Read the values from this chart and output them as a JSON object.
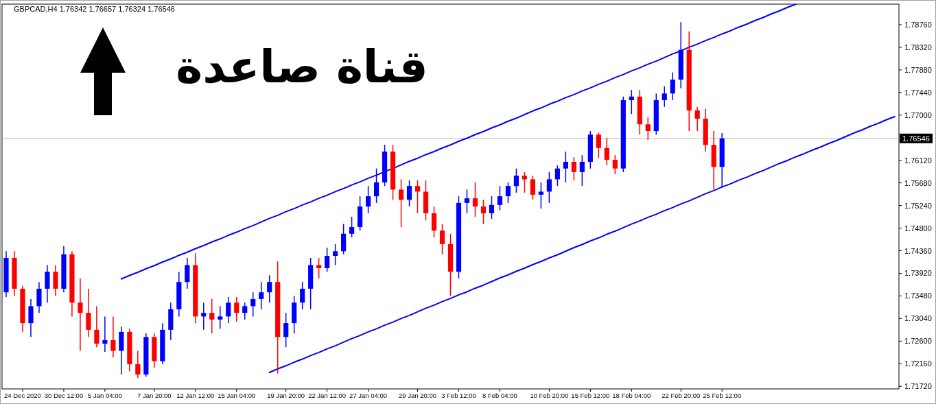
{
  "chart_data": {
    "type": "candlestick",
    "title": "GBPCAD,H4  1.76342 1.76657 1.76324 1.76546",
    "annotations": [
      "قناة صاعدة"
    ],
    "categories": [
      null,
      null,
      "24 Dec 2020",
      null,
      null,
      null,
      null,
      "30 Dec 12:00",
      null,
      null,
      null,
      null,
      "5 Jan 04:00",
      null,
      null,
      null,
      null,
      null,
      "7 Jan 20:00",
      null,
      null,
      null,
      null,
      "12 Jan 12:00",
      null,
      null,
      null,
      null,
      "15 Jan 04:00",
      null,
      null,
      null,
      null,
      null,
      "19 Jan 20:00",
      null,
      null,
      null,
      null,
      "22 Jan 12:00",
      null,
      null,
      null,
      null,
      "27 Jan 04:00",
      null,
      null,
      null,
      null,
      null,
      "29 Jan 20:00",
      null,
      null,
      null,
      null,
      "3 Feb 12:00",
      null,
      null,
      null,
      null,
      "8 Feb 04:00",
      null,
      null,
      null,
      null,
      null,
      "10 Feb 20:00",
      null,
      null,
      null,
      null,
      "15 Feb 12:00",
      null,
      null,
      null,
      null,
      "18 Feb 04:00",
      null,
      null,
      null,
      null,
      null,
      "22 Feb 20:00",
      null,
      null,
      null,
      null,
      "25 Feb 12:00",
      null,
      null,
      null,
      null,
      null,
      null,
      null,
      null,
      null,
      null,
      null,
      null,
      null,
      null,
      null,
      null,
      null,
      null,
      null,
      null,
      null
    ],
    "ohlc": [
      [
        1.7355,
        1.7435,
        1.7346,
        1.7422
      ],
      [
        1.7422,
        1.7435,
        1.7348,
        1.7362
      ],
      [
        1.7362,
        1.7368,
        1.7278,
        1.7295
      ],
      [
        1.7295,
        1.7342,
        1.7268,
        1.7328
      ],
      [
        1.7328,
        1.7375,
        1.7315,
        1.7362
      ],
      [
        1.7362,
        1.7408,
        1.7335,
        1.7395
      ],
      [
        1.7395,
        1.7408,
        1.7348,
        1.7362
      ],
      [
        1.7362,
        1.7445,
        1.7355,
        1.7429
      ],
      [
        1.7429,
        1.7435,
        1.7308,
        1.7335
      ],
      [
        1.7335,
        1.7382,
        1.7241,
        1.7315
      ],
      [
        1.7315,
        1.7362,
        1.7268,
        1.7282
      ],
      [
        1.7282,
        1.7328,
        1.7248,
        1.7255
      ],
      [
        1.7255,
        1.7308,
        1.7239,
        1.7262
      ],
      [
        1.7262,
        1.7308,
        1.7228,
        1.7241
      ],
      [
        1.7241,
        1.7288,
        1.7195,
        1.7278
      ],
      [
        1.7278,
        1.7284,
        1.7201,
        1.7215
      ],
      [
        1.7215,
        1.7241,
        1.7188,
        1.7195
      ],
      [
        1.7195,
        1.7275,
        1.7191,
        1.7268
      ],
      [
        1.7268,
        1.7275,
        1.7208,
        1.7221
      ],
      [
        1.7221,
        1.7295,
        1.7215,
        1.7282
      ],
      [
        1.7282,
        1.7335,
        1.7262,
        1.7322
      ],
      [
        1.7322,
        1.7395,
        1.7308,
        1.7375
      ],
      [
        1.7375,
        1.7422,
        1.7362,
        1.7408
      ],
      [
        1.7408,
        1.7431,
        1.7295,
        1.7308
      ],
      [
        1.7308,
        1.7335,
        1.7282,
        1.7315
      ],
      [
        1.7315,
        1.7342,
        1.7275,
        1.7302
      ],
      [
        1.7302,
        1.7328,
        1.7284,
        1.7308
      ],
      [
        1.7308,
        1.7346,
        1.7295,
        1.7335
      ],
      [
        1.7335,
        1.7346,
        1.7298,
        1.7315
      ],
      [
        1.7315,
        1.7335,
        1.7302,
        1.7328
      ],
      [
        1.7328,
        1.7355,
        1.7308,
        1.7342
      ],
      [
        1.7342,
        1.7375,
        1.7322,
        1.7355
      ],
      [
        1.7355,
        1.7388,
        1.7335,
        1.7375
      ],
      [
        1.7375,
        1.7415,
        1.7197,
        1.7268
      ],
      [
        1.7268,
        1.7315,
        1.7248,
        1.7295
      ],
      [
        1.7295,
        1.7348,
        1.7275,
        1.7335
      ],
      [
        1.7335,
        1.7375,
        1.7322,
        1.7362
      ],
      [
        1.7362,
        1.7422,
        1.7322,
        1.7408
      ],
      [
        1.7408,
        1.7422,
        1.7382,
        1.7402
      ],
      [
        1.7402,
        1.7442,
        1.7395,
        1.7426
      ],
      [
        1.7426,
        1.7449,
        1.7408,
        1.7435
      ],
      [
        1.7435,
        1.7488,
        1.7429,
        1.7469
      ],
      [
        1.7469,
        1.7502,
        1.7462,
        1.7482
      ],
      [
        1.7482,
        1.7542,
        1.7475,
        1.7522
      ],
      [
        1.7522,
        1.7562,
        1.7509,
        1.7542
      ],
      [
        1.7542,
        1.7596,
        1.7529,
        1.7569
      ],
      [
        1.7569,
        1.7642,
        1.7562,
        1.7629
      ],
      [
        1.7629,
        1.7642,
        1.7535,
        1.7555
      ],
      [
        1.7555,
        1.7575,
        1.7482,
        1.7535
      ],
      [
        1.7535,
        1.7573,
        1.7522,
        1.7562
      ],
      [
        1.7562,
        1.7573,
        1.7509,
        1.7551
      ],
      [
        1.7551,
        1.7573,
        1.7495,
        1.7509
      ],
      [
        1.7509,
        1.7522,
        1.7462,
        1.7475
      ],
      [
        1.7475,
        1.7488,
        1.7429,
        1.7449
      ],
      [
        1.7449,
        1.7469,
        1.7348,
        1.7395
      ],
      [
        1.7395,
        1.7542,
        1.7382,
        1.7529
      ],
      [
        1.7529,
        1.7555,
        1.7509,
        1.7538
      ],
      [
        1.7538,
        1.7569,
        1.7502,
        1.7522
      ],
      [
        1.7522,
        1.7535,
        1.7488,
        1.7509
      ],
      [
        1.7509,
        1.7542,
        1.7498,
        1.7525
      ],
      [
        1.7525,
        1.7562,
        1.7515,
        1.7542
      ],
      [
        1.7542,
        1.7569,
        1.7529,
        1.7562
      ],
      [
        1.7562,
        1.7596,
        1.7549,
        1.7582
      ],
      [
        1.7582,
        1.7589,
        1.7549,
        1.7575
      ],
      [
        1.7575,
        1.7582,
        1.7535,
        1.7545
      ],
      [
        1.7545,
        1.7569,
        1.7518,
        1.7551
      ],
      [
        1.7551,
        1.7589,
        1.7529,
        1.7575
      ],
      [
        1.7575,
        1.7602,
        1.7562,
        1.7596
      ],
      [
        1.7596,
        1.7629,
        1.7569,
        1.7609
      ],
      [
        1.7609,
        1.7618,
        1.7573,
        1.7589
      ],
      [
        1.7589,
        1.7622,
        1.7562,
        1.7609
      ],
      [
        1.7609,
        1.7669,
        1.7596,
        1.7662
      ],
      [
        1.7662,
        1.7666,
        1.7616,
        1.7636
      ],
      [
        1.7636,
        1.7656,
        1.7602,
        1.7613
      ],
      [
        1.7613,
        1.7622,
        1.7585,
        1.7596
      ],
      [
        1.7596,
        1.7736,
        1.7589,
        1.7729
      ],
      [
        1.7729,
        1.7749,
        1.7702,
        1.7736
      ],
      [
        1.7736,
        1.7749,
        1.7662,
        1.7682
      ],
      [
        1.7682,
        1.7696,
        1.7652,
        1.7669
      ],
      [
        1.7669,
        1.7742,
        1.7662,
        1.7729
      ],
      [
        1.7729,
        1.7756,
        1.7716,
        1.7742
      ],
      [
        1.7742,
        1.7783,
        1.7729,
        1.7769
      ],
      [
        1.7769,
        1.7881,
        1.7752,
        1.7827
      ],
      [
        1.7827,
        1.7863,
        1.7669,
        1.7709
      ],
      [
        1.7709,
        1.7716,
        1.7669,
        1.7693
      ],
      [
        1.7693,
        1.7712,
        1.7629,
        1.7642
      ],
      [
        1.7642,
        1.7669,
        1.7555,
        1.7599
      ],
      [
        1.7599,
        1.7665,
        1.7559,
        1.76546
      ],
      null,
      null,
      null,
      null,
      null,
      null,
      null,
      null,
      null,
      null,
      null,
      null,
      null,
      null,
      null,
      null,
      null,
      null,
      null,
      null,
      null
    ],
    "colors": [
      "#0000ff",
      "#ff0000",
      "#ff0000",
      "#0000ff",
      "#0000ff",
      "#0000ff",
      "#ff0000",
      "#0000ff",
      "#ff0000",
      "#ff0000",
      "#ff0000",
      "#ff0000",
      "#0000ff",
      "#ff0000",
      "#0000ff",
      "#ff0000",
      "#ff0000",
      "#0000ff",
      "#ff0000",
      "#0000ff",
      "#0000ff",
      "#0000ff",
      "#0000ff",
      "#ff0000",
      "#0000ff",
      "#ff0000",
      "#0000ff",
      "#0000ff",
      "#ff0000",
      "#0000ff",
      "#0000ff",
      "#0000ff",
      "#0000ff",
      "#ff0000",
      "#0000ff",
      "#0000ff",
      "#0000ff",
      "#0000ff",
      "#ff0000",
      "#0000ff",
      "#0000ff",
      "#0000ff",
      "#0000ff",
      "#0000ff",
      "#0000ff",
      "#0000ff",
      "#0000ff",
      "#ff0000",
      "#ff0000",
      "#0000ff",
      "#ff0000",
      "#ff0000",
      "#ff0000",
      "#ff0000",
      "#ff0000",
      "#0000ff",
      "#0000ff",
      "#ff0000",
      "#ff0000",
      "#0000ff",
      "#0000ff",
      "#0000ff",
      "#0000ff",
      "#ff0000",
      "#ff0000",
      "#0000ff",
      "#0000ff",
      "#0000ff",
      "#0000ff",
      "#ff0000",
      "#0000ff",
      "#0000ff",
      "#ff0000",
      "#ff0000",
      "#ff0000",
      "#0000ff",
      "#0000ff",
      "#ff0000",
      "#ff0000",
      "#0000ff",
      "#0000ff",
      "#0000ff",
      "#0000ff",
      "#ff0000",
      "#ff0000",
      "#ff0000",
      "#ff0000",
      "#0000ff",
      null,
      null,
      null,
      null,
      null,
      null,
      null,
      null,
      null,
      null,
      null,
      null,
      null,
      null,
      null,
      null,
      null,
      null,
      null,
      null,
      null
    ],
    "series": [
      {
        "type": "line",
        "color": "#0000ff",
        "values": [
          null,
          null,
          null,
          null,
          null,
          null,
          null,
          null,
          null,
          null,
          null,
          null,
          null,
          null,
          1.7381,
          1.7388,
          1.7394,
          1.7401,
          1.7407,
          1.7414,
          1.742,
          1.7427,
          1.7433,
          1.744,
          1.7446,
          1.7453,
          1.7459,
          1.7466,
          1.7472,
          1.7479,
          1.7485,
          1.7492,
          1.7499,
          1.7505,
          1.7512,
          1.7518,
          1.7525,
          1.7531,
          1.7538,
          1.7544,
          1.7551,
          1.7557,
          1.7564,
          1.757,
          1.7577,
          1.7583,
          1.759,
          1.7596,
          1.7603,
          1.761,
          1.7616,
          1.7623,
          1.7629,
          1.7636,
          1.7642,
          1.7649,
          1.7655,
          1.7662,
          1.7668,
          1.7675,
          1.7681,
          1.7688,
          1.7694,
          1.7701,
          1.7708,
          1.7714,
          1.7721,
          1.7727,
          1.7734,
          1.774,
          1.7747,
          1.7753,
          1.776,
          1.7766,
          1.7773,
          1.7779,
          1.7786,
          1.7792,
          1.7799,
          1.7805,
          1.7812,
          1.7819,
          1.7825,
          1.7832,
          1.7838,
          1.7845,
          1.7851,
          1.7858,
          1.7864,
          1.7871,
          1.7877,
          1.7884,
          1.789,
          1.7897,
          1.7903,
          1.791,
          1.7916,
          null,
          null,
          null,
          null,
          null,
          null,
          null,
          null,
          null,
          null,
          null,
          null
        ]
      },
      {
        "type": "line",
        "color": "#0000ff",
        "values": [
          null,
          null,
          null,
          null,
          null,
          null,
          null,
          null,
          null,
          null,
          null,
          null,
          null,
          null,
          null,
          null,
          null,
          null,
          null,
          null,
          null,
          null,
          null,
          null,
          null,
          null,
          null,
          null,
          null,
          null,
          null,
          null,
          1.7199,
          1.7206,
          1.7212,
          1.7219,
          1.7225,
          1.7232,
          1.7238,
          1.7245,
          1.7251,
          1.7258,
          1.7265,
          1.7271,
          1.7278,
          1.7284,
          1.7291,
          1.7297,
          1.7304,
          1.731,
          1.7317,
          1.7324,
          1.733,
          1.7337,
          1.7343,
          1.735,
          1.7356,
          1.7363,
          1.7369,
          1.7376,
          1.7383,
          1.7389,
          1.7396,
          1.7402,
          1.7409,
          1.7415,
          1.7422,
          1.7428,
          1.7435,
          1.7442,
          1.7448,
          1.7455,
          1.7461,
          1.7468,
          1.7474,
          1.7481,
          1.7488,
          1.7494,
          1.7501,
          1.7507,
          1.7514,
          1.752,
          1.7527,
          1.7533,
          1.754,
          1.7547,
          1.7553,
          1.756,
          1.7566,
          1.7573,
          1.7579,
          1.7586,
          1.7592,
          1.7599,
          1.7606,
          1.7612,
          1.7619,
          1.7625,
          1.7632,
          1.7638,
          1.7645,
          1.7651,
          1.7658,
          1.7665,
          1.7671,
          1.7678,
          1.7684,
          1.7691,
          1.7697
        ]
      }
    ],
    "ref_lines": [
      {
        "axis": "y",
        "value": 1.76546,
        "label": "1.76546",
        "color": "#c0c0c0"
      }
    ],
    "ylim": [
      1.7167,
      1.7916
    ],
    "yticks": [
      {
        "value": 1.7172,
        "label": "1.71720"
      },
      {
        "value": 1.7216,
        "label": "1.72160"
      },
      {
        "value": 1.726,
        "label": "1.72600"
      },
      {
        "value": 1.7304,
        "label": "1.73040"
      },
      {
        "value": 1.7348,
        "label": "1.73480"
      },
      {
        "value": 1.7392,
        "label": "1.73920"
      },
      {
        "value": 1.7436,
        "label": "1.74360"
      },
      {
        "value": 1.748,
        "label": "1.74800"
      },
      {
        "value": 1.7524,
        "label": "1.75240"
      },
      {
        "value": 1.7568,
        "label": "1.75680"
      },
      {
        "value": 1.7612,
        "label": "1.76120"
      },
      {
        "value": 1.77,
        "label": "1.77000"
      },
      {
        "value": 1.7744,
        "label": "1.77440"
      },
      {
        "value": 1.7788,
        "label": "1.77880"
      },
      {
        "value": 1.7832,
        "label": "1.78320"
      },
      {
        "value": 1.7876,
        "label": "1.78760"
      }
    ]
  }
}
